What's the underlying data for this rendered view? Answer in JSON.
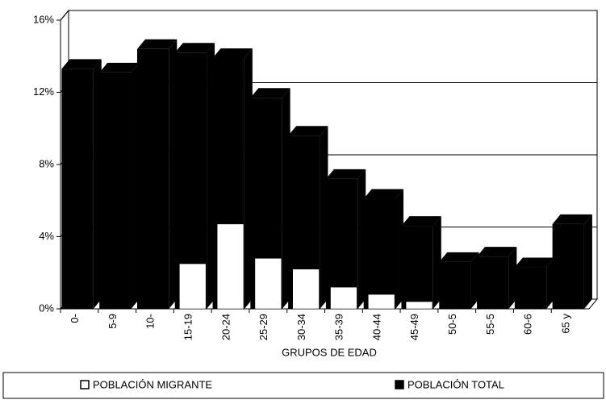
{
  "chart_data": {
    "type": "bar3d",
    "x_label": "GRUPOS DE EDAD",
    "categories": [
      "0-",
      "5-9",
      "10-",
      "15-19",
      "20-24",
      "25-29",
      "30-34",
      "35-39",
      "40-44",
      "45-49",
      "50-5",
      "55-5",
      "60-6",
      "65 y"
    ],
    "series": [
      {
        "name": "POBLACIÓN MIGRANTE",
        "color": "#ffffff",
        "values": [
          0,
          0,
          0,
          2.5,
          4.7,
          2.8,
          2.2,
          1.2,
          0.8,
          0.4,
          0,
          0,
          0,
          0
        ]
      },
      {
        "name": "POBLACIÓN TOTAL",
        "color": "#000000",
        "values": [
          13.3,
          13.1,
          14.4,
          14.2,
          13.9,
          11.7,
          9.6,
          7.2,
          6.1,
          4.6,
          2.6,
          2.9,
          2.3,
          4.7
        ]
      }
    ],
    "ylim": [
      0,
      16
    ],
    "yticks": [
      {
        "value": 0,
        "label": "0%"
      },
      {
        "value": 4,
        "label": "4%"
      },
      {
        "value": 8,
        "label": "8%"
      },
      {
        "value": 12,
        "label": "12%"
      },
      {
        "value": 16,
        "label": "16%"
      }
    ],
    "grid": true
  }
}
